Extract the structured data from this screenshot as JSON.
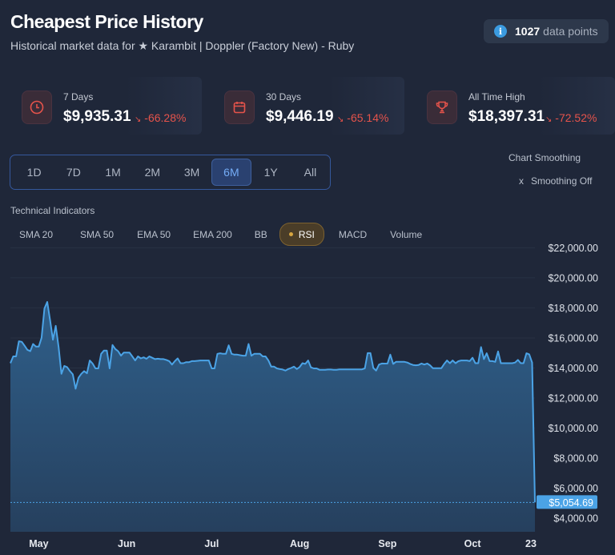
{
  "header": {
    "title": "Cheapest Price History",
    "subtitle": "Historical market data for ★ Karambit | Doppler (Factory New) - Ruby",
    "data_points_count": "1027",
    "data_points_label": "data points",
    "info_icon": "info-icon"
  },
  "stats": [
    {
      "label": "7 Days",
      "value": "$9,935.31",
      "change": "-66.28%",
      "icon": "clock-icon",
      "trend_icon": "trend-down-icon"
    },
    {
      "label": "30 Days",
      "value": "$9,446.19",
      "change": "-65.14%",
      "icon": "calendar-icon",
      "trend_icon": "trend-down-icon"
    },
    {
      "label": "All Time High",
      "value": "$18,397.31",
      "change": "-72.52%",
      "icon": "trophy-icon",
      "trend_icon": "trend-down-icon"
    }
  ],
  "time_ranges": [
    "1D",
    "7D",
    "1M",
    "2M",
    "3M",
    "6M",
    "1Y",
    "All"
  ],
  "active_range": "6M",
  "smoothing": {
    "title": "Chart Smoothing",
    "toggle_label": "Smoothing Off",
    "toggle_icon": "x"
  },
  "indicators": {
    "label": "Technical Indicators",
    "items": [
      "SMA 20",
      "SMA 50",
      "EMA 50",
      "EMA 200",
      "BB",
      "RSI",
      "MACD",
      "Volume"
    ],
    "active": "RSI"
  },
  "colors": {
    "line": "#4ba3e6",
    "negative": "#e5534b",
    "accent": "#74acf6",
    "rsi": "#d7a640"
  },
  "chart_data": {
    "type": "area",
    "title": "",
    "xlabel": "",
    "ylabel": "",
    "x_tick_labels": [
      "May",
      "Jun",
      "Jul",
      "Aug",
      "Sep",
      "Oct",
      "23"
    ],
    "y_tick_labels": [
      "$22,000.00",
      "$20,000.00",
      "$18,000.00",
      "$16,000.00",
      "$14,000.00",
      "$12,000.00",
      "$10,000.00",
      "$8,000.00",
      "$6,000.00",
      "$4,000.00"
    ],
    "y_ticks": [
      22000,
      20000,
      18000,
      16000,
      14000,
      12000,
      10000,
      8000,
      6000,
      4000
    ],
    "ylim": [
      3100,
      22500
    ],
    "x_range": [
      "04-21",
      "10-23"
    ],
    "current_price": 5054.69,
    "current_price_label": "$5,054.69",
    "grid": true,
    "points": [
      [
        "04-21",
        14320
      ],
      [
        "04-22",
        14770
      ],
      [
        "04-23",
        14770
      ],
      [
        "04-24",
        15780
      ],
      [
        "04-25",
        15740
      ],
      [
        "04-26",
        15480
      ],
      [
        "04-27",
        15210
      ],
      [
        "04-28",
        15120
      ],
      [
        "04-29",
        15600
      ],
      [
        "04-30",
        15420
      ],
      [
        "05-01",
        15420
      ],
      [
        "05-02",
        16010
      ],
      [
        "05-03",
        17960
      ],
      [
        "05-04",
        18397
      ],
      [
        "05-05",
        17160
      ],
      [
        "05-06",
        15880
      ],
      [
        "05-07",
        16800
      ],
      [
        "05-08",
        15390
      ],
      [
        "05-09",
        13610
      ],
      [
        "05-10",
        14140
      ],
      [
        "05-11",
        14060
      ],
      [
        "05-12",
        13790
      ],
      [
        "05-13",
        13580
      ],
      [
        "05-14",
        12620
      ],
      [
        "05-15",
        13350
      ],
      [
        "05-16",
        13610
      ],
      [
        "05-17",
        13790
      ],
      [
        "05-18",
        13650
      ],
      [
        "05-19",
        14500
      ],
      [
        "05-20",
        14290
      ],
      [
        "05-21",
        13970
      ],
      [
        "05-22",
        13970
      ],
      [
        "05-23",
        14940
      ],
      [
        "05-24",
        15160
      ],
      [
        "05-25",
        15160
      ],
      [
        "05-26",
        13970
      ],
      [
        "05-27",
        15530
      ],
      [
        "05-28",
        15260
      ],
      [
        "05-29",
        15120
      ],
      [
        "05-30",
        14820
      ],
      [
        "05-31",
        15030
      ],
      [
        "06-01",
        15030
      ],
      [
        "06-02",
        15030
      ],
      [
        "06-03",
        14770
      ],
      [
        "06-04",
        14500
      ],
      [
        "06-05",
        14770
      ],
      [
        "06-06",
        14640
      ],
      [
        "06-07",
        14710
      ],
      [
        "06-08",
        14610
      ],
      [
        "06-09",
        14770
      ],
      [
        "06-10",
        14680
      ],
      [
        "06-11",
        14590
      ],
      [
        "06-12",
        14620
      ],
      [
        "06-13",
        14590
      ],
      [
        "06-14",
        14590
      ],
      [
        "06-15",
        14540
      ],
      [
        "06-16",
        14460
      ],
      [
        "06-17",
        14230
      ],
      [
        "06-18",
        14460
      ],
      [
        "06-19",
        14640
      ],
      [
        "06-20",
        14320
      ],
      [
        "06-21",
        14320
      ],
      [
        "06-22",
        14390
      ],
      [
        "06-23",
        14390
      ],
      [
        "06-24",
        14460
      ],
      [
        "06-25",
        14460
      ],
      [
        "06-26",
        14480
      ],
      [
        "06-27",
        14500
      ],
      [
        "06-28",
        14500
      ],
      [
        "06-29",
        14500
      ],
      [
        "06-30",
        14500
      ],
      [
        "07-01",
        13970
      ],
      [
        "07-02",
        13970
      ],
      [
        "07-03",
        14940
      ],
      [
        "07-04",
        14980
      ],
      [
        "07-05",
        14940
      ],
      [
        "07-06",
        14940
      ],
      [
        "07-07",
        15510
      ],
      [
        "07-08",
        14940
      ],
      [
        "07-09",
        14890
      ],
      [
        "07-10",
        14890
      ],
      [
        "07-11",
        14850
      ],
      [
        "07-12",
        14820
      ],
      [
        "07-13",
        14820
      ],
      [
        "07-14",
        15600
      ],
      [
        "07-15",
        14820
      ],
      [
        "07-16",
        14940
      ],
      [
        "07-17",
        14940
      ],
      [
        "07-18",
        14940
      ],
      [
        "07-19",
        14770
      ],
      [
        "07-20",
        14770
      ],
      [
        "07-21",
        14500
      ],
      [
        "07-22",
        14090
      ],
      [
        "07-23",
        14090
      ],
      [
        "07-24",
        13970
      ],
      [
        "07-25",
        13930
      ],
      [
        "07-26",
        13900
      ],
      [
        "07-27",
        13830
      ],
      [
        "07-28",
        13930
      ],
      [
        "07-29",
        14000
      ],
      [
        "07-30",
        14090
      ],
      [
        "07-31",
        13930
      ],
      [
        "08-01",
        14060
      ],
      [
        "08-02",
        14320
      ],
      [
        "08-03",
        14270
      ],
      [
        "08-04",
        14500
      ],
      [
        "08-05",
        14040
      ],
      [
        "08-06",
        13970
      ],
      [
        "08-07",
        13970
      ],
      [
        "08-08",
        13880
      ],
      [
        "08-09",
        13880
      ],
      [
        "08-10",
        13880
      ],
      [
        "08-11",
        13900
      ],
      [
        "08-12",
        13900
      ],
      [
        "08-13",
        13880
      ],
      [
        "08-14",
        13880
      ],
      [
        "08-15",
        13910
      ],
      [
        "08-16",
        13910
      ],
      [
        "08-17",
        13910
      ],
      [
        "08-18",
        13910
      ],
      [
        "08-19",
        13910
      ],
      [
        "08-20",
        13910
      ],
      [
        "08-21",
        13910
      ],
      [
        "08-22",
        13910
      ],
      [
        "08-23",
        13910
      ],
      [
        "08-24",
        13970
      ],
      [
        "08-25",
        14990
      ],
      [
        "08-26",
        14990
      ],
      [
        "08-27",
        14000
      ],
      [
        "08-28",
        13830
      ],
      [
        "08-29",
        14230
      ],
      [
        "08-30",
        14300
      ],
      [
        "08-31",
        14290
      ],
      [
        "09-01",
        14300
      ],
      [
        "09-02",
        14890
      ],
      [
        "09-03",
        14270
      ],
      [
        "09-04",
        14410
      ],
      [
        "09-05",
        14410
      ],
      [
        "09-06",
        14410
      ],
      [
        "09-07",
        14410
      ],
      [
        "09-08",
        14360
      ],
      [
        "09-09",
        14270
      ],
      [
        "09-10",
        14200
      ],
      [
        "09-11",
        14180
      ],
      [
        "09-12",
        14200
      ],
      [
        "09-13",
        14300
      ],
      [
        "09-14",
        14230
      ],
      [
        "09-15",
        14300
      ],
      [
        "09-16",
        14180
      ],
      [
        "09-17",
        13990
      ],
      [
        "09-18",
        13990
      ],
      [
        "09-19",
        13990
      ],
      [
        "09-20",
        13990
      ],
      [
        "09-21",
        14270
      ],
      [
        "09-22",
        14500
      ],
      [
        "09-23",
        14320
      ],
      [
        "09-24",
        14500
      ],
      [
        "09-25",
        14320
      ],
      [
        "09-26",
        14450
      ],
      [
        "09-27",
        14500
      ],
      [
        "09-28",
        14500
      ],
      [
        "09-29",
        14500
      ],
      [
        "09-30",
        14460
      ],
      [
        "10-01",
        14680
      ],
      [
        "10-02",
        14320
      ],
      [
        "10-03",
        14320
      ],
      [
        "10-04",
        15390
      ],
      [
        "10-05",
        14590
      ],
      [
        "10-06",
        14980
      ],
      [
        "10-07",
        14460
      ],
      [
        "10-08",
        14460
      ],
      [
        "10-09",
        14410
      ],
      [
        "10-10",
        15100
      ],
      [
        "10-11",
        14320
      ],
      [
        "10-12",
        14320
      ],
      [
        "10-13",
        14320
      ],
      [
        "10-14",
        14320
      ],
      [
        "10-15",
        14320
      ],
      [
        "10-16",
        14360
      ],
      [
        "10-17",
        14540
      ],
      [
        "10-18",
        14320
      ],
      [
        "10-19",
        14320
      ],
      [
        "10-20",
        14980
      ],
      [
        "10-21",
        14910
      ],
      [
        "10-22",
        14360
      ],
      [
        "10-23",
        5054.69
      ]
    ]
  }
}
